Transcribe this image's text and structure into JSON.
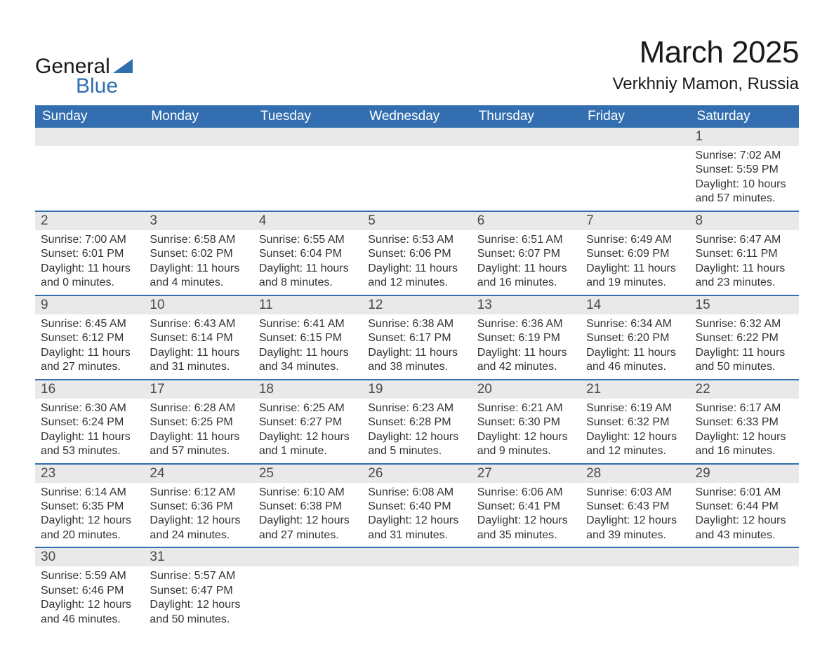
{
  "logo": {
    "word1": "General",
    "word2": "Blue"
  },
  "header": {
    "title": "March 2025",
    "location": "Verkhniy Mamon, Russia"
  },
  "styling": {
    "header_bg": "#336fb0",
    "header_fg": "#ffffff",
    "row_border": "#336fb0",
    "daybar_bg": "#e9e9e9",
    "text_color": "#333333",
    "title_fontsize": 44,
    "subtitle_fontsize": 24,
    "dayheader_fontsize": 19,
    "body_fontsize": 16,
    "logo_blue": "#2f6fb0",
    "logo_dark": "#1a1a1a"
  },
  "day_labels": [
    "Sunday",
    "Monday",
    "Tuesday",
    "Wednesday",
    "Thursday",
    "Friday",
    "Saturday"
  ],
  "weeks": [
    [
      null,
      null,
      null,
      null,
      null,
      null,
      {
        "n": "1",
        "sr": "Sunrise: 7:02 AM",
        "ss": "Sunset: 5:59 PM",
        "d1": "Daylight: 10 hours",
        "d2": "and 57 minutes."
      }
    ],
    [
      {
        "n": "2",
        "sr": "Sunrise: 7:00 AM",
        "ss": "Sunset: 6:01 PM",
        "d1": "Daylight: 11 hours",
        "d2": "and 0 minutes."
      },
      {
        "n": "3",
        "sr": "Sunrise: 6:58 AM",
        "ss": "Sunset: 6:02 PM",
        "d1": "Daylight: 11 hours",
        "d2": "and 4 minutes."
      },
      {
        "n": "4",
        "sr": "Sunrise: 6:55 AM",
        "ss": "Sunset: 6:04 PM",
        "d1": "Daylight: 11 hours",
        "d2": "and 8 minutes."
      },
      {
        "n": "5",
        "sr": "Sunrise: 6:53 AM",
        "ss": "Sunset: 6:06 PM",
        "d1": "Daylight: 11 hours",
        "d2": "and 12 minutes."
      },
      {
        "n": "6",
        "sr": "Sunrise: 6:51 AM",
        "ss": "Sunset: 6:07 PM",
        "d1": "Daylight: 11 hours",
        "d2": "and 16 minutes."
      },
      {
        "n": "7",
        "sr": "Sunrise: 6:49 AM",
        "ss": "Sunset: 6:09 PM",
        "d1": "Daylight: 11 hours",
        "d2": "and 19 minutes."
      },
      {
        "n": "8",
        "sr": "Sunrise: 6:47 AM",
        "ss": "Sunset: 6:11 PM",
        "d1": "Daylight: 11 hours",
        "d2": "and 23 minutes."
      }
    ],
    [
      {
        "n": "9",
        "sr": "Sunrise: 6:45 AM",
        "ss": "Sunset: 6:12 PM",
        "d1": "Daylight: 11 hours",
        "d2": "and 27 minutes."
      },
      {
        "n": "10",
        "sr": "Sunrise: 6:43 AM",
        "ss": "Sunset: 6:14 PM",
        "d1": "Daylight: 11 hours",
        "d2": "and 31 minutes."
      },
      {
        "n": "11",
        "sr": "Sunrise: 6:41 AM",
        "ss": "Sunset: 6:15 PM",
        "d1": "Daylight: 11 hours",
        "d2": "and 34 minutes."
      },
      {
        "n": "12",
        "sr": "Sunrise: 6:38 AM",
        "ss": "Sunset: 6:17 PM",
        "d1": "Daylight: 11 hours",
        "d2": "and 38 minutes."
      },
      {
        "n": "13",
        "sr": "Sunrise: 6:36 AM",
        "ss": "Sunset: 6:19 PM",
        "d1": "Daylight: 11 hours",
        "d2": "and 42 minutes."
      },
      {
        "n": "14",
        "sr": "Sunrise: 6:34 AM",
        "ss": "Sunset: 6:20 PM",
        "d1": "Daylight: 11 hours",
        "d2": "and 46 minutes."
      },
      {
        "n": "15",
        "sr": "Sunrise: 6:32 AM",
        "ss": "Sunset: 6:22 PM",
        "d1": "Daylight: 11 hours",
        "d2": "and 50 minutes."
      }
    ],
    [
      {
        "n": "16",
        "sr": "Sunrise: 6:30 AM",
        "ss": "Sunset: 6:24 PM",
        "d1": "Daylight: 11 hours",
        "d2": "and 53 minutes."
      },
      {
        "n": "17",
        "sr": "Sunrise: 6:28 AM",
        "ss": "Sunset: 6:25 PM",
        "d1": "Daylight: 11 hours",
        "d2": "and 57 minutes."
      },
      {
        "n": "18",
        "sr": "Sunrise: 6:25 AM",
        "ss": "Sunset: 6:27 PM",
        "d1": "Daylight: 12 hours",
        "d2": "and 1 minute."
      },
      {
        "n": "19",
        "sr": "Sunrise: 6:23 AM",
        "ss": "Sunset: 6:28 PM",
        "d1": "Daylight: 12 hours",
        "d2": "and 5 minutes."
      },
      {
        "n": "20",
        "sr": "Sunrise: 6:21 AM",
        "ss": "Sunset: 6:30 PM",
        "d1": "Daylight: 12 hours",
        "d2": "and 9 minutes."
      },
      {
        "n": "21",
        "sr": "Sunrise: 6:19 AM",
        "ss": "Sunset: 6:32 PM",
        "d1": "Daylight: 12 hours",
        "d2": "and 12 minutes."
      },
      {
        "n": "22",
        "sr": "Sunrise: 6:17 AM",
        "ss": "Sunset: 6:33 PM",
        "d1": "Daylight: 12 hours",
        "d2": "and 16 minutes."
      }
    ],
    [
      {
        "n": "23",
        "sr": "Sunrise: 6:14 AM",
        "ss": "Sunset: 6:35 PM",
        "d1": "Daylight: 12 hours",
        "d2": "and 20 minutes."
      },
      {
        "n": "24",
        "sr": "Sunrise: 6:12 AM",
        "ss": "Sunset: 6:36 PM",
        "d1": "Daylight: 12 hours",
        "d2": "and 24 minutes."
      },
      {
        "n": "25",
        "sr": "Sunrise: 6:10 AM",
        "ss": "Sunset: 6:38 PM",
        "d1": "Daylight: 12 hours",
        "d2": "and 27 minutes."
      },
      {
        "n": "26",
        "sr": "Sunrise: 6:08 AM",
        "ss": "Sunset: 6:40 PM",
        "d1": "Daylight: 12 hours",
        "d2": "and 31 minutes."
      },
      {
        "n": "27",
        "sr": "Sunrise: 6:06 AM",
        "ss": "Sunset: 6:41 PM",
        "d1": "Daylight: 12 hours",
        "d2": "and 35 minutes."
      },
      {
        "n": "28",
        "sr": "Sunrise: 6:03 AM",
        "ss": "Sunset: 6:43 PM",
        "d1": "Daylight: 12 hours",
        "d2": "and 39 minutes."
      },
      {
        "n": "29",
        "sr": "Sunrise: 6:01 AM",
        "ss": "Sunset: 6:44 PM",
        "d1": "Daylight: 12 hours",
        "d2": "and 43 minutes."
      }
    ],
    [
      {
        "n": "30",
        "sr": "Sunrise: 5:59 AM",
        "ss": "Sunset: 6:46 PM",
        "d1": "Daylight: 12 hours",
        "d2": "and 46 minutes."
      },
      {
        "n": "31",
        "sr": "Sunrise: 5:57 AM",
        "ss": "Sunset: 6:47 PM",
        "d1": "Daylight: 12 hours",
        "d2": "and 50 minutes."
      },
      null,
      null,
      null,
      null,
      null
    ]
  ]
}
